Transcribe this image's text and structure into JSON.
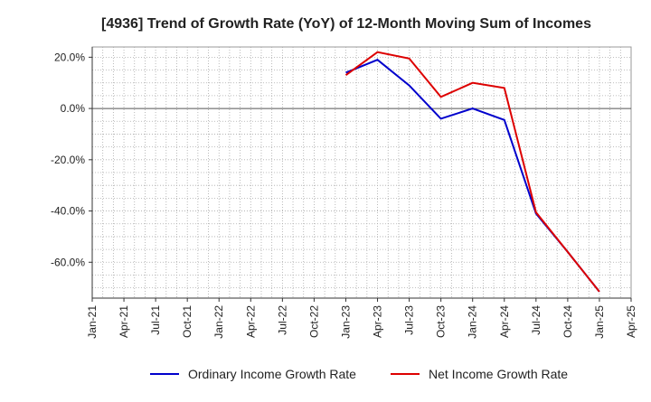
{
  "chart_data": {
    "type": "line",
    "title": "[4936]  Trend of Growth Rate (YoY) of 12-Month Moving Sum of Incomes",
    "xlabel": "",
    "ylabel": "",
    "x_ticks": [
      "Jan-21",
      "Apr-21",
      "Jul-21",
      "Oct-21",
      "Jan-22",
      "Apr-22",
      "Jul-22",
      "Oct-22",
      "Jan-23",
      "Apr-23",
      "Jul-23",
      "Oct-23",
      "Jan-24",
      "Apr-24",
      "Jul-24",
      "Oct-24",
      "Jan-25",
      "Apr-25"
    ],
    "y_ticks": [
      20,
      0,
      -20,
      -40,
      -60
    ],
    "y_tick_labels": [
      "20.0%",
      "0.0%",
      "-20.0%",
      "-40.0%",
      "-60.0%"
    ],
    "ylim": [
      -74,
      24
    ],
    "grid": true,
    "legend_position": "bottom",
    "series": [
      {
        "name": "Ordinary Income Growth Rate",
        "color": "#0000cc",
        "x": [
          "Jan-23",
          "Apr-23",
          "Jul-23",
          "Oct-23",
          "Jan-24",
          "Apr-24",
          "Jul-24",
          "Oct-24",
          "Jan-25"
        ],
        "values": [
          14.0,
          19.0,
          9.0,
          -4.0,
          0.0,
          -4.5,
          -41.0,
          -56.0,
          -71.5
        ]
      },
      {
        "name": "Net Income Growth Rate",
        "color": "#dd0000",
        "x": [
          "Jan-23",
          "Apr-23",
          "Jul-23",
          "Oct-23",
          "Jan-24",
          "Apr-24",
          "Jul-24",
          "Oct-24",
          "Jan-25"
        ],
        "values": [
          13.0,
          22.0,
          19.5,
          4.5,
          10.0,
          8.0,
          -40.5,
          -56.0,
          -71.5
        ]
      }
    ]
  }
}
